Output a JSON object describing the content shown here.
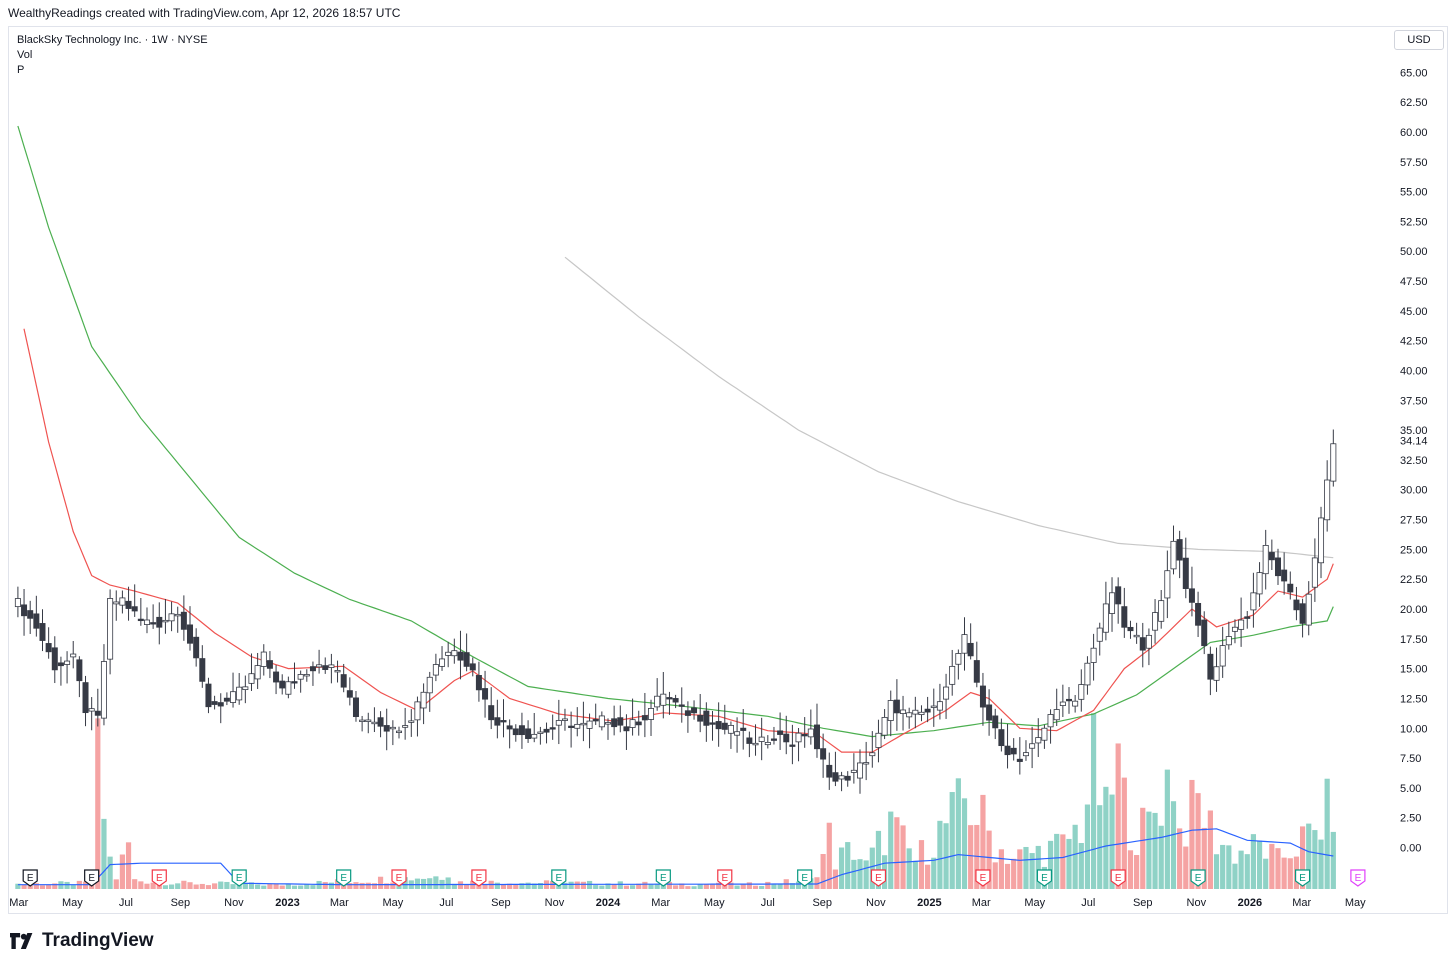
{
  "header": {
    "attribution": "WealthyReadings created with TradingView.com, Apr 12, 2026 18:57 UTC"
  },
  "legend": {
    "symbol": "BlackSky Technology Inc. · 1W · NYSE",
    "vol": "Vol",
    "p": "P"
  },
  "currency": "USD",
  "footer": {
    "brand": "TradingView"
  },
  "colors": {
    "up": "#ffffff",
    "down": "#363a45",
    "wick": "#363a45",
    "vol_up": "#8fd2c6",
    "vol_down": "#f5a3a3",
    "ma_red": "#ef5350",
    "ma_green": "#4caf50",
    "ma_gray": "#c7c7c7",
    "vol_ma": "#2962ff",
    "earn_red": "#f23645",
    "earn_green": "#089981",
    "earn_purple": "#e040fb"
  },
  "chart_data": {
    "type": "candlestick",
    "interval": "1W",
    "yaxis": {
      "ticks": [
        "65.00",
        "62.50",
        "60.00",
        "57.50",
        "55.00",
        "52.50",
        "50.00",
        "47.50",
        "45.00",
        "42.50",
        "40.00",
        "37.50",
        "35.00",
        "32.50",
        "30.00",
        "27.50",
        "25.00",
        "22.50",
        "20.00",
        "17.50",
        "15.00",
        "12.50",
        "10.00",
        "7.50",
        "5.00",
        "2.50",
        "0.00"
      ],
      "last_price": "34.14",
      "range": [
        -1.8,
        66.2
      ]
    },
    "xaxis": {
      "labels": [
        "Mar",
        "May",
        "Jul",
        "Sep",
        "Nov",
        "2023",
        "Mar",
        "May",
        "Jul",
        "Sep",
        "Nov",
        "2024",
        "Mar",
        "May",
        "Jul",
        "Sep",
        "Nov",
        "2025",
        "Mar",
        "May",
        "Jul",
        "Sep",
        "Nov",
        "2026",
        "Mar",
        "May"
      ]
    },
    "price_points": [
      [
        "2022-02-28",
        20.5
      ],
      [
        "2022-03-21",
        18.5
      ],
      [
        "2022-04-11",
        15.2
      ],
      [
        "2022-05-02",
        15.8
      ],
      [
        "2022-05-16",
        11.6
      ],
      [
        "2022-05-30",
        10.8
      ],
      [
        "2022-06-13",
        20.5
      ],
      [
        "2022-06-27",
        20.8
      ],
      [
        "2022-07-18",
        19.0
      ],
      [
        "2022-08-08",
        18.8
      ],
      [
        "2022-08-29",
        20.0
      ],
      [
        "2022-09-12",
        17.2
      ],
      [
        "2022-10-03",
        12.0
      ],
      [
        "2022-10-24",
        12.2
      ],
      [
        "2022-11-14",
        13.5
      ],
      [
        "2022-12-05",
        16.0
      ],
      [
        "2022-12-26",
        13.2
      ],
      [
        "2023-01-16",
        14.5
      ],
      [
        "2023-02-06",
        15.5
      ],
      [
        "2023-02-27",
        14.8
      ],
      [
        "2023-03-20",
        11.0
      ],
      [
        "2023-04-10",
        10.8
      ],
      [
        "2023-05-01",
        9.8
      ],
      [
        "2023-05-22",
        11.0
      ],
      [
        "2023-06-19",
        15.5
      ],
      [
        "2023-07-10",
        16.8
      ],
      [
        "2023-07-31",
        14.8
      ],
      [
        "2023-08-21",
        11.0
      ],
      [
        "2023-09-11",
        10.0
      ],
      [
        "2023-10-02",
        9.5
      ],
      [
        "2023-10-23",
        9.8
      ],
      [
        "2023-11-13",
        10.5
      ],
      [
        "2023-12-04",
        10.2
      ],
      [
        "2024-01-01",
        10.8
      ],
      [
        "2024-01-22",
        10.0
      ],
      [
        "2024-02-12",
        11.0
      ],
      [
        "2024-03-04",
        13.0
      ],
      [
        "2024-03-25",
        11.5
      ],
      [
        "2024-04-15",
        11.0
      ],
      [
        "2024-05-06",
        10.0
      ],
      [
        "2024-05-27",
        9.8
      ],
      [
        "2024-06-17",
        8.5
      ],
      [
        "2024-07-08",
        9.5
      ],
      [
        "2024-07-29",
        8.8
      ],
      [
        "2024-08-19",
        10.0
      ],
      [
        "2024-08-26",
        8.0
      ],
      [
        "2024-09-16",
        5.5
      ],
      [
        "2024-10-07",
        6.2
      ],
      [
        "2024-10-28",
        8.0
      ],
      [
        "2024-11-18",
        12.0
      ],
      [
        "2024-12-09",
        11.0
      ],
      [
        "2025-01-06",
        11.5
      ],
      [
        "2025-01-27",
        15.0
      ],
      [
        "2025-02-10",
        17.5
      ],
      [
        "2025-03-03",
        12.0
      ],
      [
        "2025-03-24",
        8.5
      ],
      [
        "2025-04-14",
        7.5
      ],
      [
        "2025-05-05",
        9.0
      ],
      [
        "2025-05-26",
        12.0
      ],
      [
        "2025-06-16",
        12.0
      ],
      [
        "2025-07-07",
        17.0
      ],
      [
        "2025-07-28",
        21.5
      ],
      [
        "2025-08-11",
        18.5
      ],
      [
        "2025-09-01",
        17.0
      ],
      [
        "2025-09-22",
        20.5
      ],
      [
        "2025-10-06",
        26.0
      ],
      [
        "2025-10-20",
        22.0
      ],
      [
        "2025-11-03",
        19.0
      ],
      [
        "2025-11-17",
        14.0
      ],
      [
        "2025-12-08",
        18.0
      ],
      [
        "2025-12-29",
        19.5
      ],
      [
        "2026-01-19",
        25.0
      ],
      [
        "2026-02-09",
        22.0
      ],
      [
        "2026-03-02",
        19.0
      ],
      [
        "2026-03-16",
        24.0
      ],
      [
        "2026-04-06",
        34.1
      ]
    ],
    "ma_red_points": [
      [
        "2022-03-07",
        43.5
      ],
      [
        "2022-04-04",
        34.0
      ],
      [
        "2022-05-02",
        26.5
      ],
      [
        "2022-05-23",
        22.8
      ],
      [
        "2022-06-13",
        22.0
      ],
      [
        "2022-07-11",
        21.5
      ],
      [
        "2022-08-29",
        20.5
      ],
      [
        "2022-10-10",
        18.0
      ],
      [
        "2022-11-21",
        16.0
      ],
      [
        "2023-01-02",
        15.0
      ],
      [
        "2023-03-06",
        15.2
      ],
      [
        "2023-04-17",
        13.0
      ],
      [
        "2023-05-29",
        11.5
      ],
      [
        "2023-07-10",
        14.0
      ],
      [
        "2023-07-31",
        14.8
      ],
      [
        "2023-09-11",
        12.5
      ],
      [
        "2023-11-06",
        11.2
      ],
      [
        "2024-01-08",
        10.6
      ],
      [
        "2024-03-04",
        11.3
      ],
      [
        "2024-05-06",
        11.0
      ],
      [
        "2024-07-01",
        9.8
      ],
      [
        "2024-08-26",
        9.5
      ],
      [
        "2024-09-23",
        8.0
      ],
      [
        "2024-10-28",
        8.0
      ],
      [
        "2024-12-02",
        9.5
      ],
      [
        "2025-01-20",
        11.5
      ],
      [
        "2025-02-17",
        13.0
      ],
      [
        "2025-03-10",
        12.5
      ],
      [
        "2025-04-14",
        10.0
      ],
      [
        "2025-05-26",
        9.8
      ],
      [
        "2025-07-07",
        11.5
      ],
      [
        "2025-08-11",
        15.0
      ],
      [
        "2025-09-15",
        17.0
      ],
      [
        "2025-10-27",
        20.0
      ],
      [
        "2025-11-24",
        18.5
      ],
      [
        "2026-01-05",
        19.5
      ],
      [
        "2026-02-02",
        21.5
      ],
      [
        "2026-03-02",
        21.0
      ],
      [
        "2026-03-30",
        22.5
      ],
      [
        "2026-04-06",
        23.8
      ]
    ],
    "ma_green_points": [
      [
        "2022-02-28",
        60.5
      ],
      [
        "2022-04-04",
        52.0
      ],
      [
        "2022-05-23",
        42.0
      ],
      [
        "2022-07-18",
        36.0
      ],
      [
        "2022-09-12",
        31.0
      ],
      [
        "2022-11-07",
        26.0
      ],
      [
        "2023-01-09",
        23.0
      ],
      [
        "2023-03-13",
        20.8
      ],
      [
        "2023-05-22",
        19.0
      ],
      [
        "2023-07-31",
        16.0
      ],
      [
        "2023-10-02",
        13.5
      ],
      [
        "2024-01-01",
        12.5
      ],
      [
        "2024-04-01",
        11.8
      ],
      [
        "2024-07-01",
        11.0
      ],
      [
        "2024-09-02",
        10.0
      ],
      [
        "2024-10-28",
        9.3
      ],
      [
        "2025-01-06",
        9.8
      ],
      [
        "2025-03-10",
        10.5
      ],
      [
        "2025-05-05",
        10.2
      ],
      [
        "2025-07-07",
        11.2
      ],
      [
        "2025-08-25",
        12.8
      ],
      [
        "2025-10-06",
        15.0
      ],
      [
        "2025-11-17",
        17.2
      ],
      [
        "2026-01-05",
        17.8
      ],
      [
        "2026-02-16",
        18.5
      ],
      [
        "2026-03-30",
        19.0
      ],
      [
        "2026-04-06",
        20.2
      ]
    ],
    "ma_gray_points": [
      [
        "2023-11-13",
        49.5
      ],
      [
        "2024-02-05",
        44.5
      ],
      [
        "2024-05-06",
        39.5
      ],
      [
        "2024-08-05",
        35.0
      ],
      [
        "2024-11-04",
        31.5
      ],
      [
        "2025-02-03",
        29.0
      ],
      [
        "2025-05-05",
        27.0
      ],
      [
        "2025-08-04",
        25.5
      ],
      [
        "2025-11-03",
        25.0
      ],
      [
        "2026-02-02",
        24.8
      ],
      [
        "2026-04-06",
        24.3
      ]
    ],
    "volume_scale_max": 9.0,
    "volume_profile": [
      [
        "2022-02-28",
        0.35
      ],
      [
        "2022-05-23",
        0.4
      ],
      [
        "2022-05-30",
        8.6
      ],
      [
        "2022-06-06",
        5.2
      ],
      [
        "2022-06-13",
        2.0
      ],
      [
        "2022-06-20",
        0.8
      ],
      [
        "2022-07-04",
        3.1
      ],
      [
        "2022-07-11",
        0.6
      ],
      [
        "2022-09-05",
        0.4
      ],
      [
        "2022-12-26",
        0.3
      ],
      [
        "2023-06-26",
        0.9
      ],
      [
        "2023-07-03",
        1.4
      ],
      [
        "2023-07-10",
        0.5
      ],
      [
        "2024-06-03",
        0.3
      ],
      [
        "2024-08-19",
        0.6
      ],
      [
        "2024-09-02",
        2.3
      ],
      [
        "2024-09-09",
        3.6
      ],
      [
        "2024-09-16",
        2.0
      ],
      [
        "2024-10-07",
        2.8
      ],
      [
        "2024-10-21",
        1.6
      ],
      [
        "2024-11-18",
        4.5
      ],
      [
        "2024-12-02",
        3.2
      ],
      [
        "2024-12-16",
        2.0
      ],
      [
        "2025-01-06",
        3.5
      ],
      [
        "2025-02-03",
        5.5
      ],
      [
        "2025-02-10",
        6.2
      ],
      [
        "2025-03-03",
        4.8
      ],
      [
        "2025-03-17",
        3.0
      ],
      [
        "2025-04-07",
        2.2
      ],
      [
        "2025-05-05",
        2.6
      ],
      [
        "2025-06-02",
        3.0
      ],
      [
        "2025-06-23",
        4.5
      ],
      [
        "2025-07-07",
        8.6
      ],
      [
        "2025-07-21",
        5.0
      ],
      [
        "2025-08-04",
        8.6
      ],
      [
        "2025-08-11",
        6.0
      ],
      [
        "2025-08-25",
        3.8
      ],
      [
        "2025-09-08",
        4.5
      ],
      [
        "2025-10-06",
        8.6
      ],
      [
        "2025-10-13",
        4.0
      ],
      [
        "2025-11-03",
        6.0
      ],
      [
        "2025-11-24",
        3.5
      ],
      [
        "2025-12-15",
        2.5
      ],
      [
        "2026-01-12",
        3.0
      ],
      [
        "2026-02-02",
        2.0
      ],
      [
        "2026-03-02",
        3.4
      ],
      [
        "2026-03-16",
        3.8
      ],
      [
        "2026-04-06",
        6.1
      ]
    ],
    "vol_ma_points": [
      [
        "2022-02-28",
        0.3
      ],
      [
        "2022-05-23",
        0.3
      ],
      [
        "2022-06-13",
        1.7
      ],
      [
        "2022-07-18",
        1.8
      ],
      [
        "2022-10-17",
        1.8
      ],
      [
        "2022-11-07",
        0.4
      ],
      [
        "2023-03-06",
        0.3
      ],
      [
        "2024-08-26",
        0.35
      ],
      [
        "2024-09-23",
        1.0
      ],
      [
        "2024-11-11",
        1.8
      ],
      [
        "2025-01-06",
        2.0
      ],
      [
        "2025-02-03",
        2.4
      ],
      [
        "2025-03-10",
        2.2
      ],
      [
        "2025-04-14",
        2.0
      ],
      [
        "2025-06-02",
        2.2
      ],
      [
        "2025-07-21",
        3.0
      ],
      [
        "2025-09-22",
        3.6
      ],
      [
        "2025-10-27",
        4.1
      ],
      [
        "2025-11-24",
        4.2
      ],
      [
        "2025-12-29",
        3.4
      ],
      [
        "2026-02-16",
        3.2
      ],
      [
        "2026-03-09",
        2.6
      ],
      [
        "2026-04-06",
        2.3
      ]
    ],
    "earnings": [
      {
        "date": "2022-03-14",
        "label": "E",
        "kind": "black"
      },
      {
        "date": "2022-05-23",
        "label": "E",
        "kind": "black"
      },
      {
        "date": "2022-08-08",
        "label": "E",
        "kind": "red"
      },
      {
        "date": "2022-11-07",
        "label": "E",
        "kind": "green"
      },
      {
        "date": "2023-03-06",
        "label": "E",
        "kind": "green"
      },
      {
        "date": "2023-05-08",
        "label": "E",
        "kind": "red"
      },
      {
        "date": "2023-08-07",
        "label": "E",
        "kind": "red"
      },
      {
        "date": "2023-11-06",
        "label": "E",
        "kind": "green"
      },
      {
        "date": "2024-03-04",
        "label": "E",
        "kind": "green"
      },
      {
        "date": "2024-05-13",
        "label": "E",
        "kind": "red"
      },
      {
        "date": "2024-08-12",
        "label": "E",
        "kind": "green"
      },
      {
        "date": "2024-11-04",
        "label": "E",
        "kind": "red"
      },
      {
        "date": "2025-03-03",
        "label": "E",
        "kind": "red"
      },
      {
        "date": "2025-05-12",
        "label": "E",
        "kind": "green"
      },
      {
        "date": "2025-08-04",
        "label": "E",
        "kind": "red"
      },
      {
        "date": "2025-11-03",
        "label": "E",
        "kind": "green"
      },
      {
        "date": "2026-03-02",
        "label": "E",
        "kind": "green"
      },
      {
        "date": "2026-05-04",
        "label": "E",
        "kind": "purple"
      }
    ]
  }
}
